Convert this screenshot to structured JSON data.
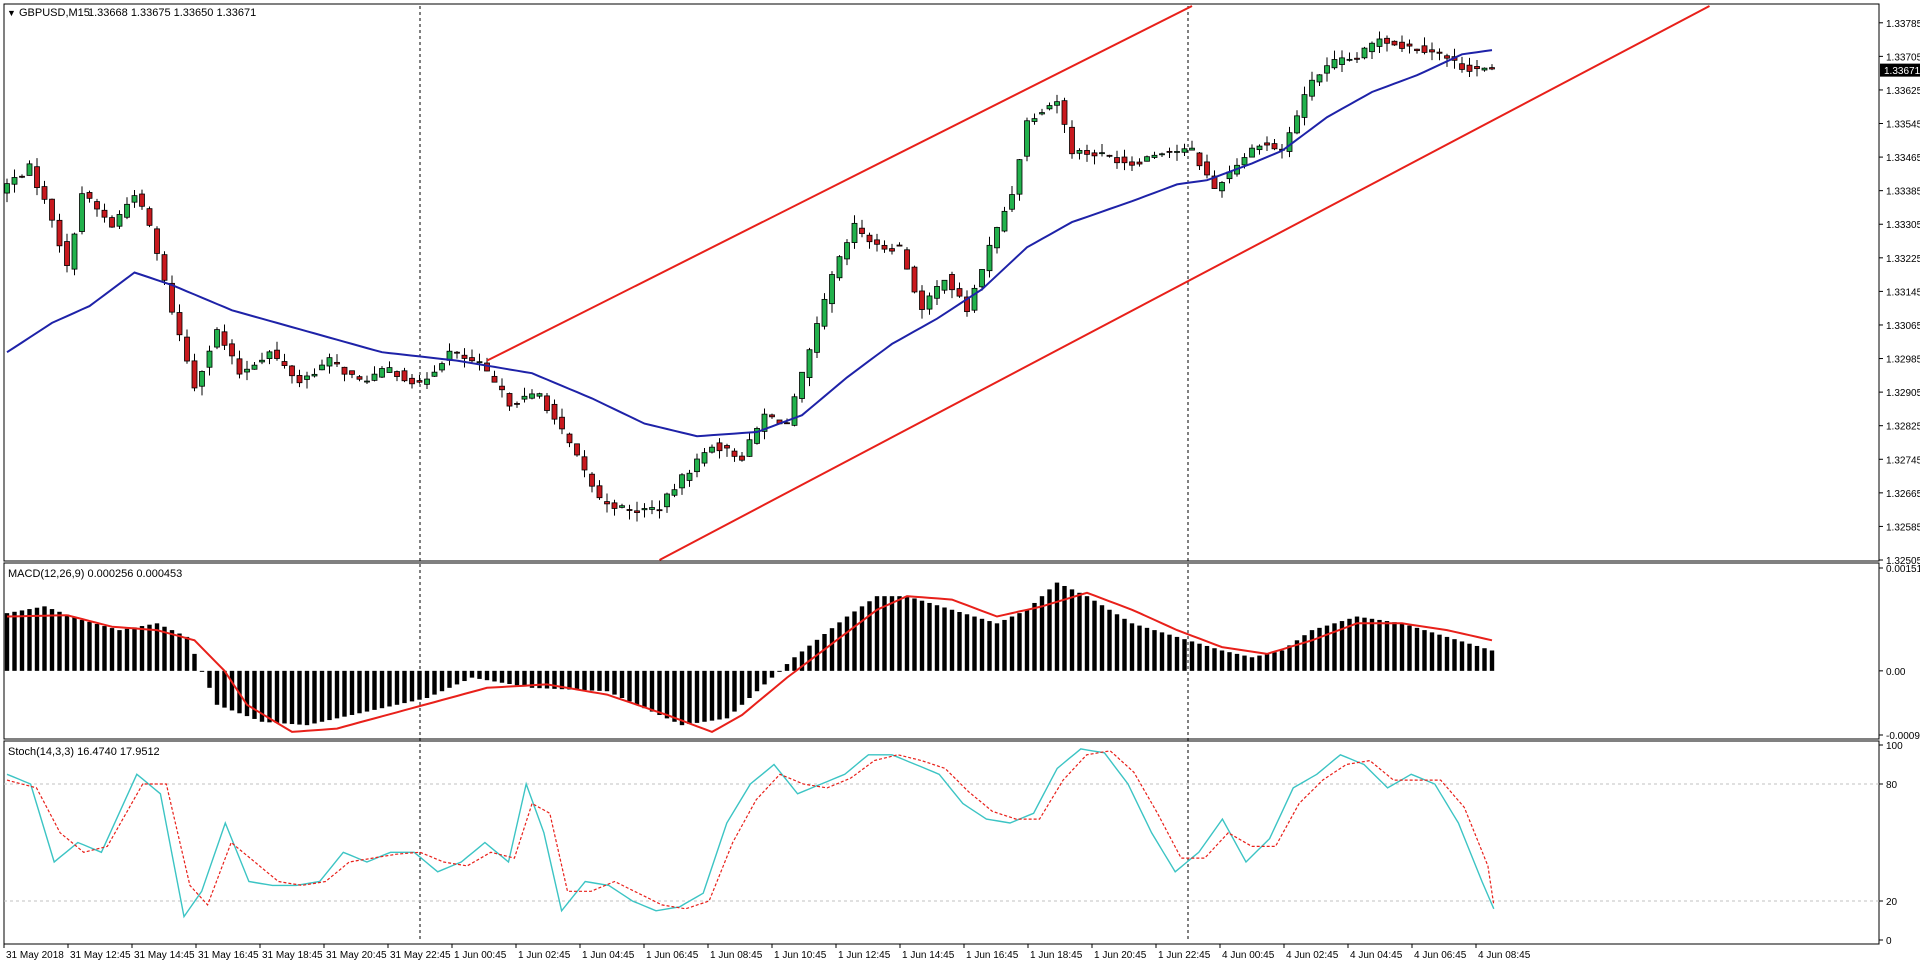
{
  "window": {
    "arrow": "▼",
    "symbol_label": "GBPUSD,M15",
    "ohlc": "1.33668 1.33675 1.33650 1.33671"
  },
  "colors": {
    "background": "#ffffff",
    "frame": "#000000",
    "bull_candle": "#22b14c",
    "bear_candle": "#c8191e",
    "ma_line": "#1e22a8",
    "channel": "#e8201a",
    "macd_hist": "#000000",
    "macd_signal": "#e8201a",
    "stoch_main": "#3cc4c4",
    "stoch_signal": "#e8201a",
    "price_tag_bg": "#000000",
    "price_tag_fg": "#ffffff"
  },
  "chart_data": [
    {
      "type": "candlestick",
      "title": "GBPUSD,M15",
      "ylim": [
        1.32505,
        1.33825
      ],
      "y_ticks": [
        "1.33785",
        "1.33705",
        "1.33625",
        "1.33545",
        "1.33465",
        "1.33385",
        "1.33305",
        "1.33225",
        "1.33145",
        "1.33065",
        "1.32985",
        "1.32905",
        "1.32825",
        "1.32745",
        "1.32665",
        "1.32585",
        "1.32505"
      ],
      "current_price": "1.33671",
      "x_ticks": [
        "31 May 2018",
        "31 May 12:45",
        "31 May 14:45",
        "31 May 16:45",
        "31 May 18:45",
        "31 May 20:45",
        "31 May 22:45",
        "1 Jun 00:45",
        "1 Jun 02:45",
        "1 Jun 04:45",
        "1 Jun 06:45",
        "1 Jun 08:45",
        "1 Jun 10:45",
        "1 Jun 12:45",
        "1 Jun 14:45",
        "1 Jun 16:45",
        "1 Jun 18:45",
        "1 Jun 20:45",
        "1 Jun 22:45",
        "4 Jun 00:45",
        "4 Jun 02:45",
        "4 Jun 04:45",
        "4 Jun 06:45",
        "4 Jun 08:45"
      ],
      "separators_at_tick_index": [
        6.5,
        18.5
      ],
      "close_anchors": [
        [
          0,
          1.334
        ],
        [
          3,
          1.3344
        ],
        [
          6,
          1.3332
        ],
        [
          8,
          1.332
        ],
        [
          10,
          1.3338
        ],
        [
          14,
          1.333
        ],
        [
          17,
          1.3338
        ],
        [
          19,
          1.333
        ],
        [
          22,
          1.331
        ],
        [
          25,
          1.3292
        ],
        [
          28,
          1.3305
        ],
        [
          31,
          1.3295
        ],
        [
          35,
          1.33
        ],
        [
          39,
          1.3293
        ],
        [
          43,
          1.3298
        ],
        [
          47,
          1.3293
        ],
        [
          51,
          1.3296
        ],
        [
          55,
          1.3292
        ],
        [
          59,
          1.33
        ],
        [
          63,
          1.3297
        ],
        [
          67,
          1.3288
        ],
        [
          71,
          1.329
        ],
        [
          75,
          1.3278
        ],
        [
          79,
          1.3265
        ],
        [
          83,
          1.3262
        ],
        [
          87,
          1.3263
        ],
        [
          90,
          1.327
        ],
        [
          94,
          1.3278
        ],
        [
          98,
          1.3275
        ],
        [
          101,
          1.3285
        ],
        [
          104,
          1.3283
        ],
        [
          107,
          1.33
        ],
        [
          110,
          1.3318
        ],
        [
          113,
          1.333
        ],
        [
          116,
          1.3325
        ],
        [
          119,
          1.3325
        ],
        [
          122,
          1.331
        ],
        [
          125,
          1.3318
        ],
        [
          128,
          1.331
        ],
        [
          131,
          1.3325
        ],
        [
          134,
          1.3338
        ],
        [
          136,
          1.3355
        ],
        [
          138,
          1.3358
        ],
        [
          140,
          1.336
        ],
        [
          142,
          1.3348
        ],
        [
          146,
          1.3347
        ],
        [
          150,
          1.3345
        ],
        [
          154,
          1.3348
        ],
        [
          158,
          1.3348
        ],
        [
          161,
          1.3339
        ],
        [
          164,
          1.3345
        ],
        [
          167,
          1.335
        ],
        [
          170,
          1.3348
        ],
        [
          174,
          1.3365
        ],
        [
          177,
          1.3369
        ],
        [
          180,
          1.337
        ],
        [
          183,
          1.3375
        ],
        [
          186,
          1.3373
        ],
        [
          190,
          1.3372
        ],
        [
          194,
          1.3368
        ],
        [
          198,
          1.33671
        ]
      ],
      "ma_anchors": [
        [
          0,
          1.33
        ],
        [
          6,
          1.3307
        ],
        [
          11,
          1.3311
        ],
        [
          17,
          1.3319
        ],
        [
          22,
          1.3316
        ],
        [
          30,
          1.331
        ],
        [
          40,
          1.3305
        ],
        [
          50,
          1.33
        ],
        [
          60,
          1.3298
        ],
        [
          70,
          1.3295
        ],
        [
          78,
          1.3289
        ],
        [
          85,
          1.3283
        ],
        [
          92,
          1.328
        ],
        [
          100,
          1.3281
        ],
        [
          106,
          1.3285
        ],
        [
          112,
          1.3294
        ],
        [
          118,
          1.3302
        ],
        [
          124,
          1.3308
        ],
        [
          130,
          1.3315
        ],
        [
          136,
          1.3325
        ],
        [
          142,
          1.3331
        ],
        [
          150,
          1.3336
        ],
        [
          156,
          1.334
        ],
        [
          160,
          1.3341
        ],
        [
          166,
          1.3345
        ],
        [
          170,
          1.3348
        ],
        [
          176,
          1.3356
        ],
        [
          182,
          1.3362
        ],
        [
          188,
          1.3366
        ],
        [
          194,
          1.3371
        ],
        [
          198,
          1.3372
        ]
      ],
      "channel_upper": [
        [
          64,
          1.3298
        ],
        [
          158,
          1.33825
        ]
      ],
      "channel_lower": [
        [
          87,
          1.32505
        ],
        [
          227,
          1.33825
        ]
      ]
    },
    {
      "type": "bar",
      "title": "MACD(12,26,9) 0.000256 0.000453",
      "ylim": [
        -0.000945,
        0.001515
      ],
      "y_ticks": [
        "0.001515",
        "0.00",
        "-0.000945"
      ],
      "hist_anchors": [
        [
          0,
          0.00085
        ],
        [
          5,
          0.00095
        ],
        [
          10,
          0.00075
        ],
        [
          15,
          0.0006
        ],
        [
          20,
          0.0007
        ],
        [
          24,
          0.0005
        ],
        [
          28,
          -0.0005
        ],
        [
          34,
          -0.00075
        ],
        [
          40,
          -0.0008
        ],
        [
          48,
          -0.0006
        ],
        [
          56,
          -0.0004
        ],
        [
          62,
          -0.0001
        ],
        [
          70,
          -0.00025
        ],
        [
          80,
          -0.0003
        ],
        [
          90,
          -0.0008
        ],
        [
          96,
          -0.0007
        ],
        [
          100,
          -0.0003
        ],
        [
          105,
          0.0002
        ],
        [
          112,
          0.0008
        ],
        [
          116,
          0.0011
        ],
        [
          120,
          0.0011
        ],
        [
          126,
          0.0009
        ],
        [
          132,
          0.0007
        ],
        [
          136,
          0.0009
        ],
        [
          140,
          0.0013
        ],
        [
          144,
          0.0011
        ],
        [
          150,
          0.0007
        ],
        [
          156,
          0.0005
        ],
        [
          162,
          0.0003
        ],
        [
          166,
          0.0002
        ],
        [
          170,
          0.0003
        ],
        [
          174,
          0.0006
        ],
        [
          180,
          0.0008
        ],
        [
          186,
          0.0007
        ],
        [
          192,
          0.0005
        ],
        [
          198,
          0.0003
        ]
      ],
      "signal_anchors": [
        [
          0,
          0.0008
        ],
        [
          8,
          0.00082
        ],
        [
          14,
          0.00065
        ],
        [
          20,
          0.0006
        ],
        [
          25,
          0.00045
        ],
        [
          29,
          0.0
        ],
        [
          32,
          -0.0005
        ],
        [
          38,
          -0.0009
        ],
        [
          44,
          -0.00085
        ],
        [
          54,
          -0.00055
        ],
        [
          64,
          -0.00025
        ],
        [
          72,
          -0.0002
        ],
        [
          80,
          -0.00035
        ],
        [
          88,
          -0.00065
        ],
        [
          94,
          -0.0009
        ],
        [
          98,
          -0.00065
        ],
        [
          104,
          -0.0001
        ],
        [
          110,
          0.0004
        ],
        [
          116,
          0.0009
        ],
        [
          120,
          0.0011
        ],
        [
          126,
          0.00105
        ],
        [
          132,
          0.0008
        ],
        [
          138,
          0.00095
        ],
        [
          144,
          0.00115
        ],
        [
          150,
          0.0009
        ],
        [
          156,
          0.0006
        ],
        [
          162,
          0.00035
        ],
        [
          168,
          0.00025
        ],
        [
          174,
          0.00045
        ],
        [
          180,
          0.0007
        ],
        [
          186,
          0.0007
        ],
        [
          192,
          0.0006
        ],
        [
          198,
          0.00045
        ]
      ]
    },
    {
      "type": "line",
      "title": "Stoch(14,3,3) 16.4740 17.9512",
      "ylim": [
        0,
        100
      ],
      "y_ticks": [
        "100",
        "80",
        "20",
        "0"
      ],
      "levels": [
        80,
        20
      ],
      "main_anchors": [
        [
          0,
          85
        ],
        [
          4,
          80
        ],
        [
          8,
          40
        ],
        [
          12,
          50
        ],
        [
          16,
          45
        ],
        [
          22,
          85
        ],
        [
          26,
          75
        ],
        [
          30,
          12
        ],
        [
          33,
          25
        ],
        [
          37,
          60
        ],
        [
          41,
          30
        ],
        [
          45,
          28
        ],
        [
          49,
          28
        ],
        [
          53,
          30
        ],
        [
          57,
          45
        ],
        [
          61,
          40
        ],
        [
          65,
          45
        ],
        [
          69,
          45
        ],
        [
          73,
          35
        ],
        [
          77,
          40
        ],
        [
          81,
          50
        ],
        [
          85,
          40
        ],
        [
          88,
          80
        ],
        [
          91,
          55
        ],
        [
          94,
          15
        ],
        [
          98,
          30
        ],
        [
          102,
          28
        ],
        [
          106,
          20
        ],
        [
          110,
          15
        ],
        [
          114,
          17
        ],
        [
          118,
          24
        ],
        [
          122,
          60
        ],
        [
          126,
          80
        ],
        [
          130,
          90
        ],
        [
          134,
          75
        ],
        [
          138,
          80
        ],
        [
          142,
          85
        ],
        [
          146,
          95
        ],
        [
          150,
          95
        ],
        [
          154,
          90
        ],
        [
          158,
          85
        ],
        [
          162,
          70
        ],
        [
          166,
          62
        ],
        [
          170,
          60
        ],
        [
          174,
          65
        ],
        [
          178,
          88
        ],
        [
          182,
          98
        ],
        [
          186,
          96
        ],
        [
          190,
          80
        ],
        [
          194,
          55
        ],
        [
          198,
          35
        ],
        [
          202,
          45
        ],
        [
          206,
          62
        ],
        [
          210,
          40
        ],
        [
          214,
          52
        ],
        [
          218,
          78
        ],
        [
          222,
          85
        ],
        [
          226,
          95
        ],
        [
          230,
          90
        ],
        [
          234,
          78
        ],
        [
          238,
          85
        ],
        [
          242,
          80
        ],
        [
          246,
          60
        ],
        [
          250,
          30
        ],
        [
          252,
          16
        ]
      ],
      "signal_anchors": [
        [
          0,
          82
        ],
        [
          5,
          78
        ],
        [
          9,
          55
        ],
        [
          13,
          45
        ],
        [
          17,
          48
        ],
        [
          23,
          80
        ],
        [
          27,
          80
        ],
        [
          31,
          28
        ],
        [
          34,
          18
        ],
        [
          38,
          50
        ],
        [
          42,
          40
        ],
        [
          46,
          30
        ],
        [
          50,
          28
        ],
        [
          54,
          30
        ],
        [
          58,
          40
        ],
        [
          62,
          42
        ],
        [
          66,
          44
        ],
        [
          70,
          45
        ],
        [
          74,
          40
        ],
        [
          78,
          38
        ],
        [
          82,
          45
        ],
        [
          86,
          42
        ],
        [
          89,
          70
        ],
        [
          92,
          65
        ],
        [
          95,
          25
        ],
        [
          99,
          25
        ],
        [
          103,
          30
        ],
        [
          107,
          24
        ],
        [
          111,
          18
        ],
        [
          115,
          16
        ],
        [
          119,
          20
        ],
        [
          123,
          50
        ],
        [
          127,
          72
        ],
        [
          131,
          85
        ],
        [
          135,
          80
        ],
        [
          139,
          78
        ],
        [
          143,
          83
        ],
        [
          147,
          92
        ],
        [
          151,
          95
        ],
        [
          155,
          92
        ],
        [
          159,
          88
        ],
        [
          163,
          76
        ],
        [
          167,
          66
        ],
        [
          171,
          62
        ],
        [
          175,
          62
        ],
        [
          179,
          82
        ],
        [
          183,
          95
        ],
        [
          187,
          97
        ],
        [
          191,
          86
        ],
        [
          195,
          65
        ],
        [
          199,
          42
        ],
        [
          203,
          42
        ],
        [
          207,
          55
        ],
        [
          211,
          48
        ],
        [
          215,
          48
        ],
        [
          219,
          70
        ],
        [
          223,
          82
        ],
        [
          227,
          90
        ],
        [
          231,
          92
        ],
        [
          235,
          82
        ],
        [
          239,
          82
        ],
        [
          243,
          82
        ],
        [
          247,
          68
        ],
        [
          251,
          38
        ],
        [
          252,
          18
        ]
      ]
    }
  ]
}
